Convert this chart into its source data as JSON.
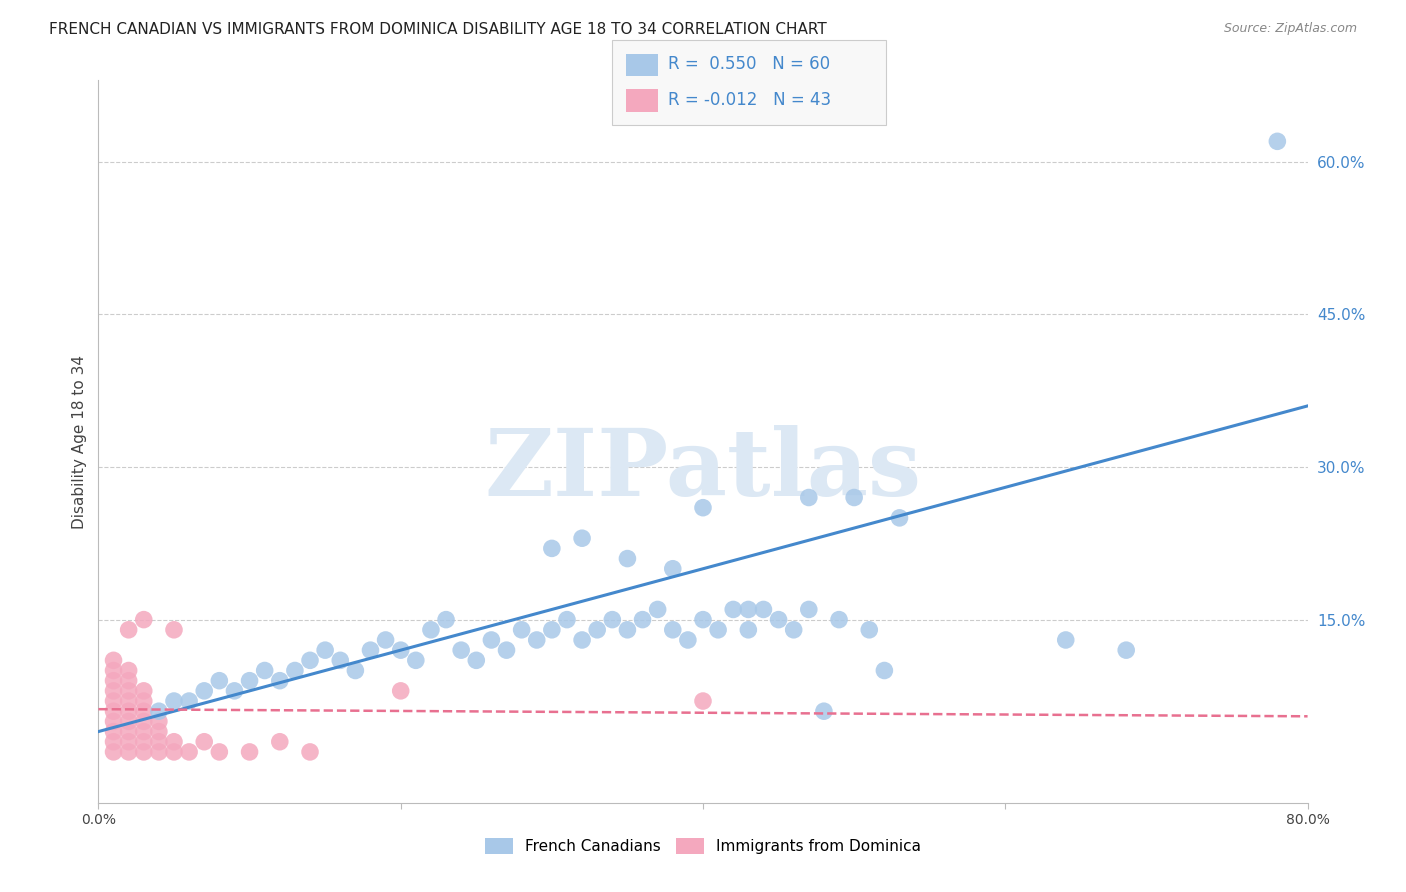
{
  "title": "FRENCH CANADIAN VS IMMIGRANTS FROM DOMINICA DISABILITY AGE 18 TO 34 CORRELATION CHART",
  "source": "Source: ZipAtlas.com",
  "ylabel": "Disability Age 18 to 34",
  "xlim": [
    0,
    0.8
  ],
  "ylim": [
    -0.03,
    0.68
  ],
  "xtick_positions": [
    0.0,
    0.2,
    0.4,
    0.6,
    0.8
  ],
  "xtick_labels": [
    "0.0%",
    "",
    "",
    "",
    "80.0%"
  ],
  "ytick_labels_right": [
    "15.0%",
    "30.0%",
    "45.0%",
    "60.0%"
  ],
  "ytick_positions_right": [
    0.15,
    0.3,
    0.45,
    0.6
  ],
  "blue_R": 0.55,
  "blue_N": 60,
  "pink_R": -0.012,
  "pink_N": 43,
  "blue_color": "#a8c8e8",
  "blue_line_color": "#4488cc",
  "pink_color": "#f4a8be",
  "pink_line_color": "#e87090",
  "background_color": "#ffffff",
  "grid_color": "#cccccc",
  "watermark_text": "ZIPatlas",
  "watermark_color": "#dce8f4",
  "title_fontsize": 11,
  "source_fontsize": 9,
  "legend_label_blue": "French Canadians",
  "legend_label_pink": "Immigrants from Dominica",
  "blue_x": [
    0.04,
    0.05,
    0.06,
    0.07,
    0.08,
    0.09,
    0.1,
    0.11,
    0.12,
    0.13,
    0.14,
    0.15,
    0.16,
    0.17,
    0.18,
    0.19,
    0.2,
    0.21,
    0.22,
    0.23,
    0.24,
    0.25,
    0.26,
    0.27,
    0.28,
    0.29,
    0.3,
    0.31,
    0.32,
    0.33,
    0.34,
    0.35,
    0.36,
    0.37,
    0.38,
    0.39,
    0.4,
    0.41,
    0.42,
    0.43,
    0.44,
    0.45,
    0.46,
    0.47,
    0.48,
    0.49,
    0.5,
    0.51,
    0.52,
    0.53,
    0.3,
    0.32,
    0.35,
    0.38,
    0.4,
    0.43,
    0.47,
    0.64,
    0.68,
    0.78
  ],
  "blue_y": [
    0.06,
    0.07,
    0.07,
    0.08,
    0.09,
    0.08,
    0.09,
    0.1,
    0.09,
    0.1,
    0.11,
    0.12,
    0.11,
    0.1,
    0.12,
    0.13,
    0.12,
    0.11,
    0.14,
    0.15,
    0.12,
    0.11,
    0.13,
    0.12,
    0.14,
    0.13,
    0.14,
    0.15,
    0.13,
    0.14,
    0.15,
    0.14,
    0.15,
    0.16,
    0.14,
    0.13,
    0.15,
    0.14,
    0.16,
    0.14,
    0.16,
    0.15,
    0.14,
    0.16,
    0.06,
    0.15,
    0.27,
    0.14,
    0.1,
    0.25,
    0.22,
    0.23,
    0.21,
    0.2,
    0.26,
    0.16,
    0.27,
    0.13,
    0.12,
    0.62
  ],
  "pink_x": [
    0.01,
    0.01,
    0.01,
    0.01,
    0.01,
    0.01,
    0.01,
    0.01,
    0.01,
    0.01,
    0.02,
    0.02,
    0.02,
    0.02,
    0.02,
    0.02,
    0.02,
    0.02,
    0.02,
    0.02,
    0.03,
    0.03,
    0.03,
    0.03,
    0.03,
    0.03,
    0.03,
    0.03,
    0.04,
    0.04,
    0.04,
    0.04,
    0.05,
    0.05,
    0.05,
    0.06,
    0.07,
    0.08,
    0.1,
    0.12,
    0.14,
    0.2,
    0.4
  ],
  "pink_y": [
    0.02,
    0.03,
    0.04,
    0.05,
    0.06,
    0.07,
    0.08,
    0.09,
    0.1,
    0.11,
    0.02,
    0.03,
    0.04,
    0.05,
    0.06,
    0.07,
    0.08,
    0.09,
    0.1,
    0.14,
    0.02,
    0.03,
    0.04,
    0.05,
    0.06,
    0.07,
    0.08,
    0.15,
    0.02,
    0.03,
    0.04,
    0.05,
    0.02,
    0.03,
    0.14,
    0.02,
    0.03,
    0.02,
    0.02,
    0.03,
    0.02,
    0.08,
    0.07
  ],
  "blue_trend_x0": 0.0,
  "blue_trend_y0": 0.04,
  "blue_trend_x1": 0.8,
  "blue_trend_y1": 0.36,
  "pink_trend_x0": 0.0,
  "pink_trend_y0": 0.062,
  "pink_trend_x1": 0.8,
  "pink_trend_y1": 0.055
}
